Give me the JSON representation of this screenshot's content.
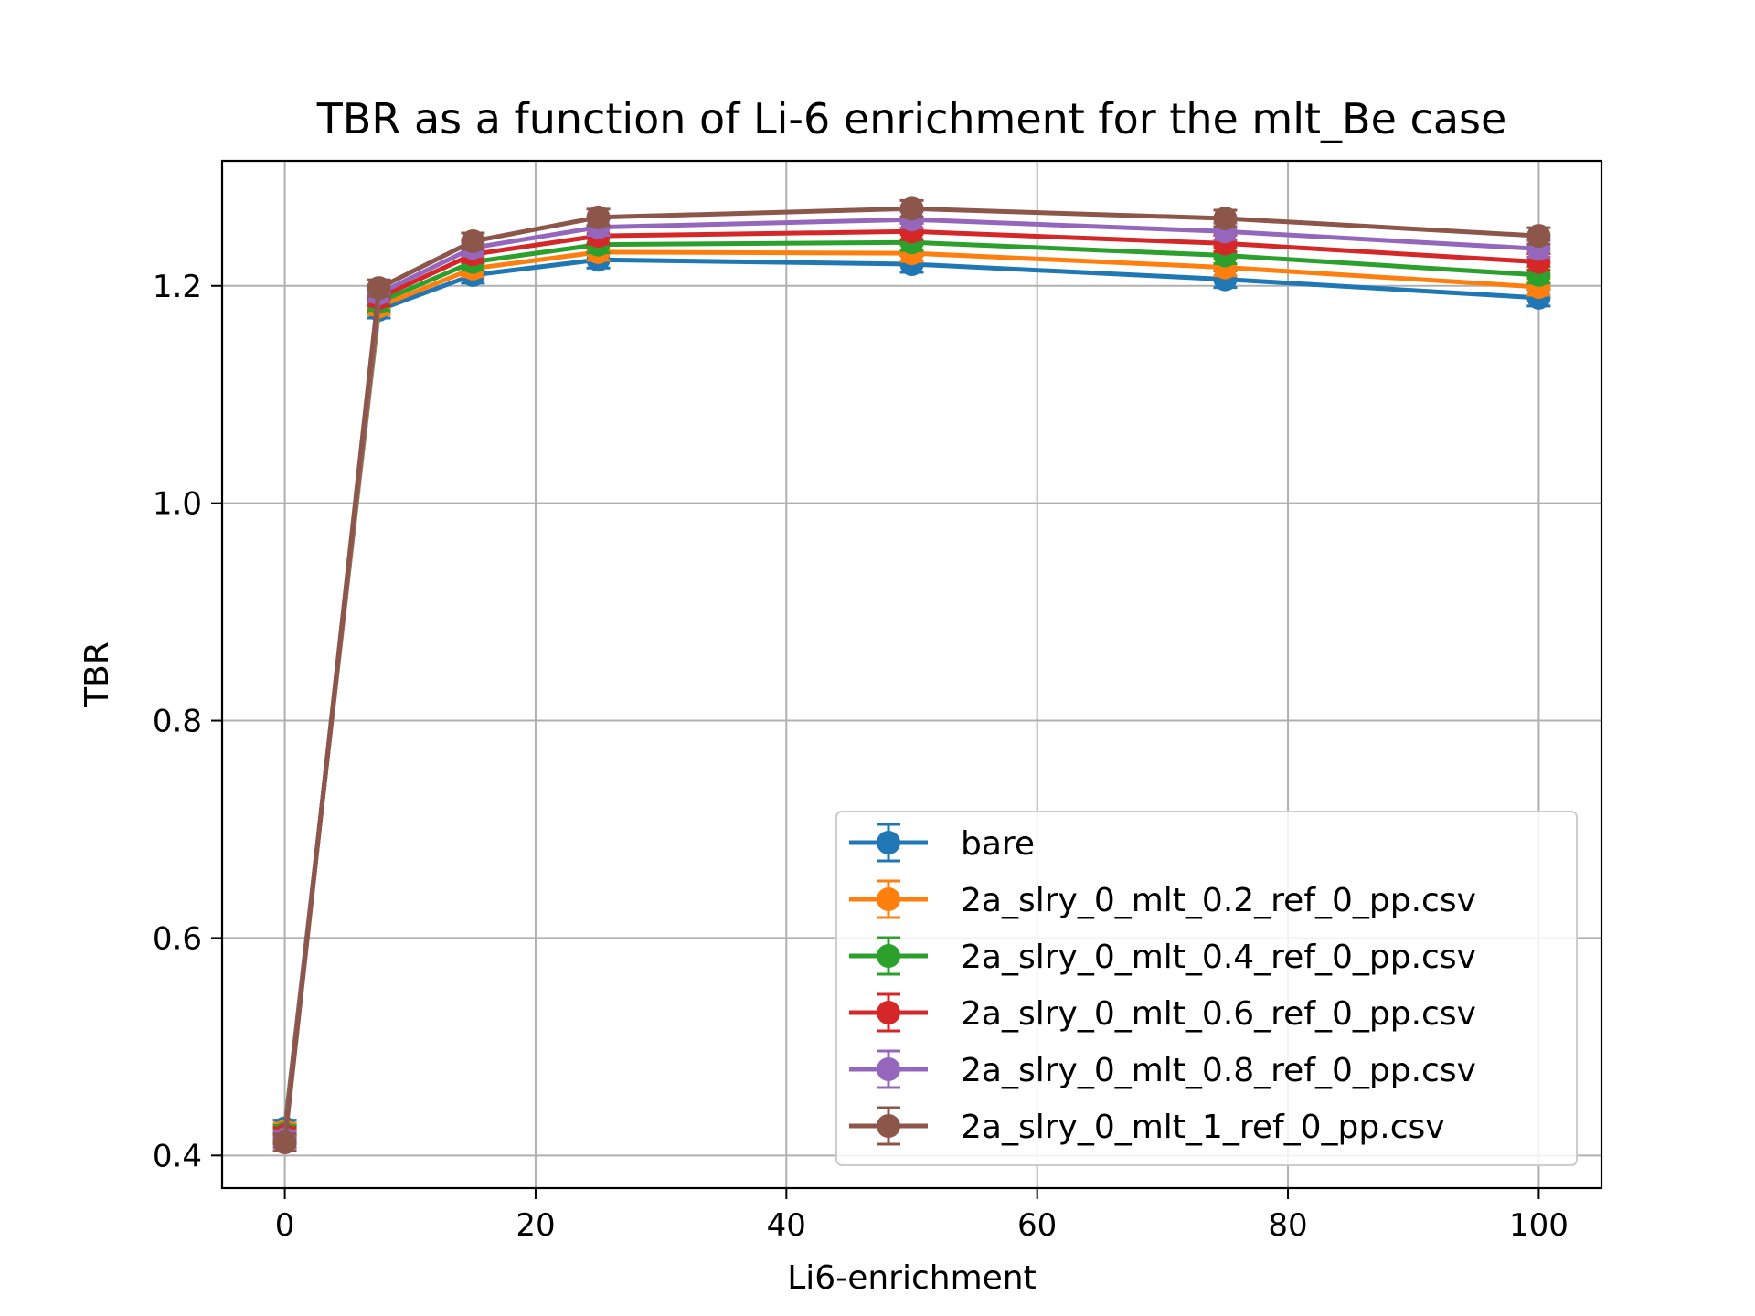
{
  "chart_data": {
    "type": "line",
    "title": "TBR as a function of Li-6 enrichment for the mlt_Be case",
    "xlabel": "Li6-enrichment",
    "ylabel": "TBR",
    "xlim": [
      -5,
      105
    ],
    "ylim": [
      0.37,
      1.315
    ],
    "x_ticks": [
      0,
      20,
      40,
      60,
      80,
      100
    ],
    "x_tick_labels": [
      "0",
      "20",
      "40",
      "60",
      "80",
      "100"
    ],
    "y_ticks": [
      0.4,
      0.6,
      0.8,
      1.0,
      1.2
    ],
    "y_tick_labels": [
      "0.4",
      "0.6",
      "0.8",
      "1.0",
      "1.2"
    ],
    "grid": true,
    "legend_position": "lower-right",
    "error_bars": true,
    "x": [
      0,
      7.5,
      15,
      25,
      50,
      75,
      100
    ],
    "series": [
      {
        "name": "bare",
        "color": "#1f77b4",
        "values": [
          0.425,
          1.178,
          1.21,
          1.224,
          1.22,
          1.206,
          1.189
        ]
      },
      {
        "name": "2a_slry_0_mlt_0.2_ref_0_pp.csv",
        "color": "#ff7f0e",
        "values": [
          0.422,
          1.181,
          1.216,
          1.231,
          1.23,
          1.217,
          1.199
        ]
      },
      {
        "name": "2a_slry_0_mlt_0.4_ref_0_pp.csv",
        "color": "#2ca02c",
        "values": [
          0.42,
          1.185,
          1.222,
          1.238,
          1.24,
          1.228,
          1.21
        ]
      },
      {
        "name": "2a_slry_0_mlt_0.6_ref_0_pp.csv",
        "color": "#d62728",
        "values": [
          0.418,
          1.189,
          1.229,
          1.246,
          1.25,
          1.239,
          1.222
        ]
      },
      {
        "name": "2a_slry_0_mlt_0.8_ref_0_pp.csv",
        "color": "#9467bd",
        "values": [
          0.415,
          1.193,
          1.235,
          1.254,
          1.261,
          1.25,
          1.234
        ]
      },
      {
        "name": "2a_slry_0_mlt_1_ref_0_pp.csv",
        "color": "#8c564b",
        "values": [
          0.412,
          1.198,
          1.241,
          1.263,
          1.271,
          1.262,
          1.246
        ]
      }
    ]
  }
}
